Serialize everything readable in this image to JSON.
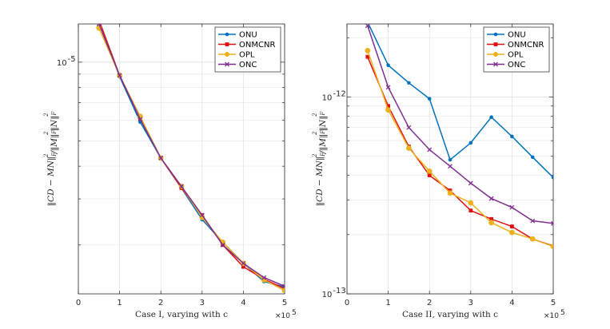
{
  "chart_data": [
    {
      "type": "line",
      "panel": "left",
      "xlabel": "Case I, varying with c",
      "ylabel": "||CD − MN||²_F / ||M||²_F ||N||²_F",
      "ylabel_parts": {
        "main": "‖CD − MN‖",
        "sub1": "F",
        "sup1": "2",
        "mid": "/‖M‖",
        "sub2": "F",
        "sup2": "2",
        "end": "‖N‖",
        "sub3": "F",
        "sup3": "2"
      },
      "xscale": "linear",
      "yscale": "log",
      "xlim": [
        0,
        500000
      ],
      "ylim": [
        1.3e-06,
        1.4e-05
      ],
      "xticks": [
        0,
        100000,
        200000,
        300000,
        400000,
        500000
      ],
      "xtick_labels": [
        "0",
        "1",
        "2",
        "3",
        "4",
        "5"
      ],
      "x_exponent": {
        "base": "×10",
        "power": "5"
      },
      "yticks": [
        1e-05
      ],
      "ytick_labels": [
        {
          "base": "10",
          "power": "-5"
        }
      ],
      "grid": true,
      "legend": "top-right",
      "x": [
        50000,
        100000,
        150000,
        200000,
        250000,
        300000,
        350000,
        400000,
        450000,
        500000
      ],
      "series": [
        {
          "name": "ONU",
          "color": "#0072BD",
          "marker": "dot",
          "values": [
            1.42e-05,
            8.8e-06,
            5.9e-06,
            4.3e-06,
            3.3e-06,
            2.5e-06,
            2.05e-06,
            1.7e-06,
            1.45e-06,
            1.38e-06
          ]
        },
        {
          "name": "ONMCNR",
          "color": "#E01010",
          "marker": "square",
          "values": [
            1.45e-05,
            8.9e-06,
            6.1e-06,
            4.3e-06,
            3.3e-06,
            2.6e-06,
            2e-06,
            1.65e-06,
            1.48e-06,
            1.36e-06
          ]
        },
        {
          "name": "OPL",
          "color": "#EDB120",
          "marker": "circle",
          "values": [
            1.35e-05,
            8.9e-06,
            6.2e-06,
            4.3e-06,
            3.35e-06,
            2.55e-06,
            2.05e-06,
            1.7e-06,
            1.47e-06,
            1.34e-06
          ]
        },
        {
          "name": "ONC",
          "color": "#7E2F8E",
          "marker": "x",
          "values": [
            1.4e-05,
            8.9e-06,
            6.05e-06,
            4.3e-06,
            3.35e-06,
            2.6e-06,
            2e-06,
            1.7e-06,
            1.5e-06,
            1.39e-06
          ]
        }
      ]
    },
    {
      "type": "line",
      "panel": "right",
      "xlabel": "Case II, varying with c",
      "ylabel": "||CD − MN||²_F / ||M||²_F ||N||²_F",
      "ylabel_parts": {
        "main": "‖CD − MN‖",
        "sub1": "F",
        "sup1": "2",
        "mid": "/‖M‖",
        "sub2": "F",
        "sup2": "2",
        "end": "‖N‖",
        "sub3": "F",
        "sup3": "2"
      },
      "xscale": "linear",
      "yscale": "log",
      "xlim": [
        0,
        500000
      ],
      "ylim": [
        1e-13,
        2.35e-12
      ],
      "xticks": [
        0,
        100000,
        200000,
        300000,
        400000,
        500000
      ],
      "xtick_labels": [
        "0",
        "1",
        "2",
        "3",
        "4",
        "5"
      ],
      "x_exponent": {
        "base": "×10",
        "power": "5"
      },
      "yticks": [
        1e-13,
        1e-12
      ],
      "ytick_labels": [
        {
          "base": "10",
          "power": "-13"
        },
        {
          "base": "10",
          "power": "-12"
        }
      ],
      "grid": true,
      "legend": "top-right",
      "x": [
        50000,
        100000,
        150000,
        200000,
        250000,
        300000,
        350000,
        400000,
        450000,
        500000
      ],
      "series": [
        {
          "name": "ONU",
          "color": "#0072BD",
          "marker": "dot",
          "values": [
            2.4e-12,
            1.45e-12,
            1.18e-12,
            9.8e-13,
            4.8e-13,
            5.85e-13,
            7.9e-13,
            6.3e-13,
            4.95e-13,
            3.9e-13
          ]
        },
        {
          "name": "ONMCNR",
          "color": "#E01010",
          "marker": "square",
          "values": [
            1.6e-12,
            9e-13,
            5.6e-13,
            4e-13,
            3.35e-13,
            2.65e-13,
            2.4e-13,
            2.2e-13,
            1.9e-13,
            1.75e-13
          ]
        },
        {
          "name": "OPL",
          "color": "#EDB120",
          "marker": "circle",
          "values": [
            1.72e-12,
            8.6e-13,
            5.5e-13,
            4.2e-13,
            3.25e-13,
            2.9e-13,
            2.3e-13,
            2.05e-13,
            1.9e-13,
            1.74e-13
          ]
        },
        {
          "name": "ONC",
          "color": "#7E2F8E",
          "marker": "x",
          "values": [
            2.3e-12,
            1.12e-12,
            7e-13,
            5.4e-13,
            4.45e-13,
            3.65e-13,
            3.05e-13,
            2.75e-13,
            2.35e-13,
            2.28e-13
          ]
        }
      ]
    }
  ]
}
